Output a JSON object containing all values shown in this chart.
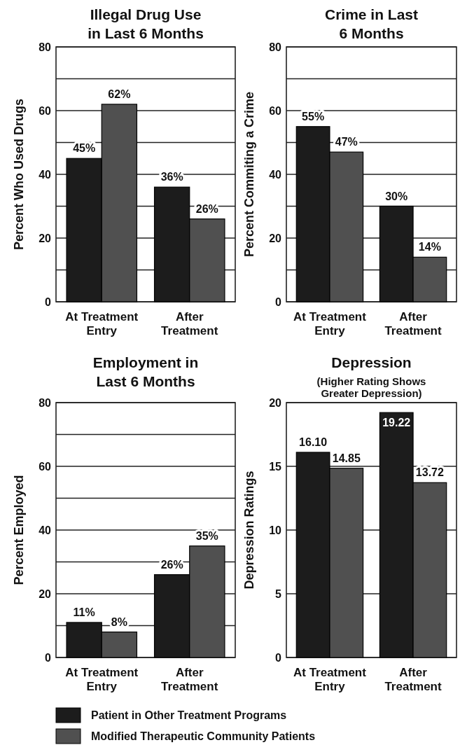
{
  "chart_data": [
    {
      "type": "bar",
      "title": "Illegal Drug Use in Last 6 Months",
      "ylabel": "Percent Who Used Drugs",
      "categories": [
        "At Treatment Entry",
        "After Treatment"
      ],
      "series": [
        {
          "color": "#1c1c1c",
          "values": [
            45,
            36
          ],
          "value_labels": [
            "45%",
            "36%"
          ]
        },
        {
          "color": "#505050",
          "values": [
            62,
            26
          ],
          "value_labels": [
            "62%",
            "26%"
          ]
        }
      ],
      "ylim": [
        0,
        80
      ],
      "yticks": [
        0,
        {
          "value": 10,
          "label": null
        },
        20,
        {
          "value": 30,
          "label": null
        },
        40,
        {
          "value": 50,
          "label": null
        },
        60,
        {
          "value": 70,
          "label": null
        },
        80
      ],
      "grid": "y"
    },
    {
      "type": "bar",
      "title": "Crime in Last 6 Months",
      "ylabel": "Percent Commiting a Crime",
      "categories": [
        "At Treatment Entry",
        "After Treatment"
      ],
      "series": [
        {
          "color": "#1c1c1c",
          "values": [
            55,
            30
          ],
          "value_labels": [
            "55%",
            "30%"
          ]
        },
        {
          "color": "#505050",
          "values": [
            47,
            14
          ],
          "value_labels": [
            "47%",
            "14%"
          ]
        }
      ],
      "ylim": [
        0,
        80
      ],
      "yticks": [
        0,
        {
          "value": 10,
          "label": null
        },
        20,
        {
          "value": 30,
          "label": null
        },
        40,
        {
          "value": 50,
          "label": null
        },
        60,
        {
          "value": 70,
          "label": null
        },
        80
      ],
      "grid": "y"
    },
    {
      "type": "bar",
      "title": "Employment in Last 6 Months",
      "ylabel": "Percent Employed",
      "categories": [
        "At Treatment Entry",
        "After Treatment"
      ],
      "series": [
        {
          "name": "Patient in Other Treatment Programs",
          "color": "#1c1c1c",
          "values": [
            11,
            26
          ],
          "value_labels": [
            "11%",
            "26%"
          ]
        },
        {
          "name": "Modified Therapeutic Community Patients",
          "color": "#505050",
          "values": [
            8,
            35
          ],
          "value_labels": [
            "8%",
            "35%"
          ]
        }
      ],
      "ylim": [
        0,
        80
      ],
      "yticks": [
        0,
        {
          "value": 10,
          "label": null
        },
        20,
        {
          "value": 30,
          "label": null
        },
        40,
        {
          "value": 50,
          "label": null
        },
        60,
        {
          "value": 70,
          "label": null
        },
        80
      ],
      "grid": "y",
      "legend": "bottom"
    },
    {
      "type": "bar",
      "title": "Depression",
      "subtitle": "(Higher Rating Shows Greater Depression)",
      "ylabel": "Depression Ratings",
      "categories": [
        "At Treatment Entry",
        "After Treatment"
      ],
      "series": [
        {
          "color": "#1c1c1c",
          "values": [
            16.1,
            19.22
          ],
          "value_labels": [
            "16.10",
            "19.22"
          ]
        },
        {
          "color": "#505050",
          "values": [
            14.85,
            13.72
          ],
          "value_labels": [
            "14.85",
            "13.72"
          ]
        }
      ],
      "ylim": [
        0,
        20
      ],
      "yticks": [
        0,
        5,
        10,
        15,
        20
      ],
      "grid": "y"
    }
  ]
}
